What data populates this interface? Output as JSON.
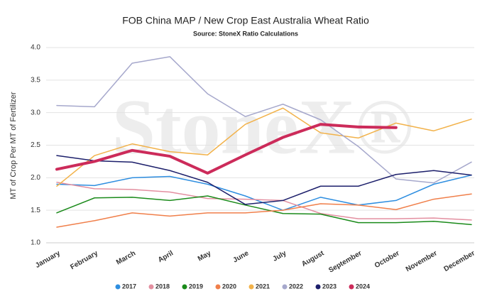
{
  "chart_data": {
    "type": "line",
    "title": "FOB China MAP / New Crop East Australia Wheat Ratio",
    "subtitle": "Source: StoneX Ratio Calculations",
    "watermark": "StoneX®",
    "y_label": "MT of Crop Per MT of Fertilizer",
    "categories": [
      "January",
      "February",
      "March",
      "April",
      "May",
      "June",
      "July",
      "August",
      "September",
      "October",
      "November",
      "December"
    ],
    "ylim": [
      1.0,
      4.0
    ],
    "yticks": [
      {
        "value": 1.0,
        "label": "1.0"
      },
      {
        "value": 1.5,
        "label": "1.5"
      },
      {
        "value": 2.0,
        "label": "2.0"
      },
      {
        "value": 2.5,
        "label": "2.5"
      },
      {
        "value": 3.0,
        "label": "3.0"
      },
      {
        "value": 3.5,
        "label": "3.5"
      },
      {
        "value": 4.0,
        "label": "4.0"
      }
    ],
    "grid": true,
    "legend": "bottom",
    "series": [
      {
        "name": "2017",
        "color": "#2e8ee0",
        "line_width": 1.5,
        "values": [
          1.9,
          1.88,
          2.0,
          2.02,
          1.9,
          1.72,
          1.5,
          1.7,
          1.58,
          1.65,
          1.9,
          2.04
        ]
      },
      {
        "name": "2018",
        "color": "#e38fa0",
        "line_width": 1.5,
        "values": [
          1.93,
          1.83,
          1.82,
          1.78,
          1.68,
          1.67,
          1.65,
          1.45,
          1.37,
          1.37,
          1.38,
          1.35
        ]
      },
      {
        "name": "2019",
        "color": "#1a8a1a",
        "line_width": 1.5,
        "values": [
          1.46,
          1.69,
          1.7,
          1.65,
          1.72,
          1.58,
          1.45,
          1.44,
          1.31,
          1.31,
          1.33,
          1.28
        ]
      },
      {
        "name": "2020",
        "color": "#f07f4a",
        "line_width": 1.5,
        "values": [
          1.24,
          1.34,
          1.46,
          1.41,
          1.46,
          1.46,
          1.5,
          1.6,
          1.58,
          1.51,
          1.67,
          1.75
        ]
      },
      {
        "name": "2021",
        "color": "#f2b24a",
        "line_width": 1.5,
        "values": [
          1.87,
          2.34,
          2.52,
          2.4,
          2.35,
          2.82,
          3.07,
          2.69,
          2.61,
          2.84,
          2.72,
          2.9
        ]
      },
      {
        "name": "2022",
        "color": "#a6a8cc",
        "line_width": 1.5,
        "values": [
          3.11,
          3.09,
          3.76,
          3.86,
          3.29,
          2.94,
          3.13,
          2.89,
          2.48,
          1.98,
          1.92,
          2.24
        ]
      },
      {
        "name": "2023",
        "color": "#1c1f6b",
        "line_width": 1.5,
        "values": [
          2.34,
          2.26,
          2.24,
          2.11,
          1.93,
          1.59,
          1.65,
          1.87,
          1.87,
          2.05,
          2.11,
          2.04
        ]
      },
      {
        "name": "2024",
        "color": "#cc2b5a",
        "line_width": 4,
        "values": [
          2.13,
          2.25,
          2.42,
          2.33,
          2.07,
          2.35,
          2.62,
          2.82,
          2.78,
          2.77,
          null,
          null
        ]
      }
    ]
  }
}
